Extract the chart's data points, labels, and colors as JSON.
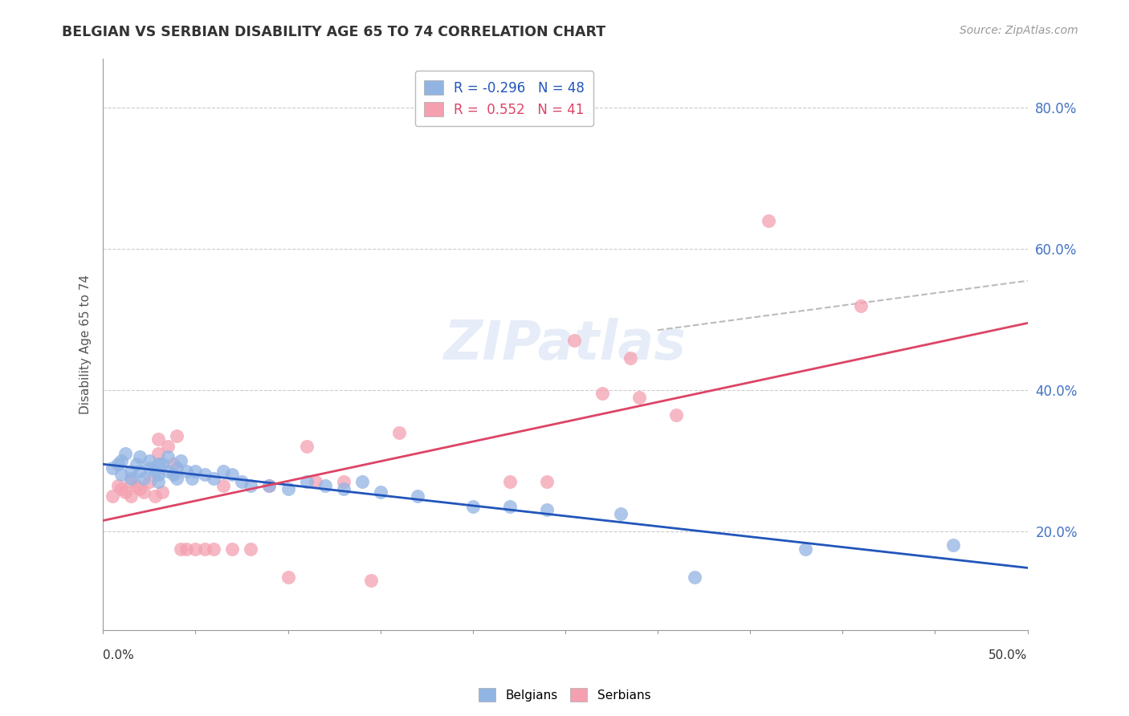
{
  "title": "BELGIAN VS SERBIAN DISABILITY AGE 65 TO 74 CORRELATION CHART",
  "source": "Source: ZipAtlas.com",
  "ylabel": "Disability Age 65 to 74",
  "ytick_values": [
    0.2,
    0.4,
    0.6,
    0.8
  ],
  "xlim": [
    0.0,
    0.5
  ],
  "ylim": [
    0.06,
    0.87
  ],
  "blue_color": "#92b4e3",
  "pink_color": "#f4a0b0",
  "blue_line_color": "#2255bb",
  "pink_line_color": "#dd4466",
  "legend_blue": "R = -0.296   N = 48",
  "legend_pink": "R =  0.552   N = 41",
  "watermark": "ZIPatlas",
  "blue_scatter": [
    [
      0.005,
      0.29
    ],
    [
      0.008,
      0.295
    ],
    [
      0.01,
      0.3
    ],
    [
      0.01,
      0.28
    ],
    [
      0.012,
      0.31
    ],
    [
      0.015,
      0.285
    ],
    [
      0.015,
      0.275
    ],
    [
      0.018,
      0.295
    ],
    [
      0.02,
      0.305
    ],
    [
      0.02,
      0.285
    ],
    [
      0.022,
      0.275
    ],
    [
      0.025,
      0.3
    ],
    [
      0.025,
      0.29
    ],
    [
      0.028,
      0.285
    ],
    [
      0.03,
      0.295
    ],
    [
      0.03,
      0.28
    ],
    [
      0.03,
      0.27
    ],
    [
      0.032,
      0.295
    ],
    [
      0.035,
      0.305
    ],
    [
      0.035,
      0.285
    ],
    [
      0.038,
      0.28
    ],
    [
      0.04,
      0.29
    ],
    [
      0.04,
      0.275
    ],
    [
      0.042,
      0.3
    ],
    [
      0.045,
      0.285
    ],
    [
      0.048,
      0.275
    ],
    [
      0.05,
      0.285
    ],
    [
      0.055,
      0.28
    ],
    [
      0.06,
      0.275
    ],
    [
      0.065,
      0.285
    ],
    [
      0.07,
      0.28
    ],
    [
      0.075,
      0.27
    ],
    [
      0.08,
      0.265
    ],
    [
      0.09,
      0.265
    ],
    [
      0.1,
      0.26
    ],
    [
      0.11,
      0.27
    ],
    [
      0.12,
      0.265
    ],
    [
      0.13,
      0.26
    ],
    [
      0.14,
      0.27
    ],
    [
      0.15,
      0.255
    ],
    [
      0.17,
      0.25
    ],
    [
      0.2,
      0.235
    ],
    [
      0.22,
      0.235
    ],
    [
      0.24,
      0.23
    ],
    [
      0.28,
      0.225
    ],
    [
      0.32,
      0.135
    ],
    [
      0.38,
      0.175
    ],
    [
      0.46,
      0.18
    ]
  ],
  "pink_scatter": [
    [
      0.005,
      0.25
    ],
    [
      0.008,
      0.265
    ],
    [
      0.01,
      0.26
    ],
    [
      0.012,
      0.255
    ],
    [
      0.015,
      0.27
    ],
    [
      0.015,
      0.25
    ],
    [
      0.018,
      0.265
    ],
    [
      0.02,
      0.26
    ],
    [
      0.022,
      0.255
    ],
    [
      0.025,
      0.27
    ],
    [
      0.028,
      0.25
    ],
    [
      0.03,
      0.33
    ],
    [
      0.03,
      0.31
    ],
    [
      0.032,
      0.255
    ],
    [
      0.035,
      0.32
    ],
    [
      0.038,
      0.295
    ],
    [
      0.04,
      0.335
    ],
    [
      0.042,
      0.175
    ],
    [
      0.045,
      0.175
    ],
    [
      0.05,
      0.175
    ],
    [
      0.055,
      0.175
    ],
    [
      0.06,
      0.175
    ],
    [
      0.065,
      0.265
    ],
    [
      0.07,
      0.175
    ],
    [
      0.08,
      0.175
    ],
    [
      0.09,
      0.265
    ],
    [
      0.1,
      0.135
    ],
    [
      0.11,
      0.32
    ],
    [
      0.115,
      0.27
    ],
    [
      0.13,
      0.27
    ],
    [
      0.145,
      0.13
    ],
    [
      0.16,
      0.34
    ],
    [
      0.22,
      0.27
    ],
    [
      0.24,
      0.27
    ],
    [
      0.255,
      0.47
    ],
    [
      0.27,
      0.395
    ],
    [
      0.285,
      0.445
    ],
    [
      0.29,
      0.39
    ],
    [
      0.31,
      0.365
    ],
    [
      0.36,
      0.64
    ],
    [
      0.41,
      0.52
    ]
  ],
  "blue_trend": [
    0.0,
    0.5,
    0.295,
    0.148
  ],
  "pink_trend": [
    0.0,
    0.5,
    0.215,
    0.495
  ],
  "gray_dash": [
    0.3,
    0.5,
    0.485,
    0.555
  ]
}
